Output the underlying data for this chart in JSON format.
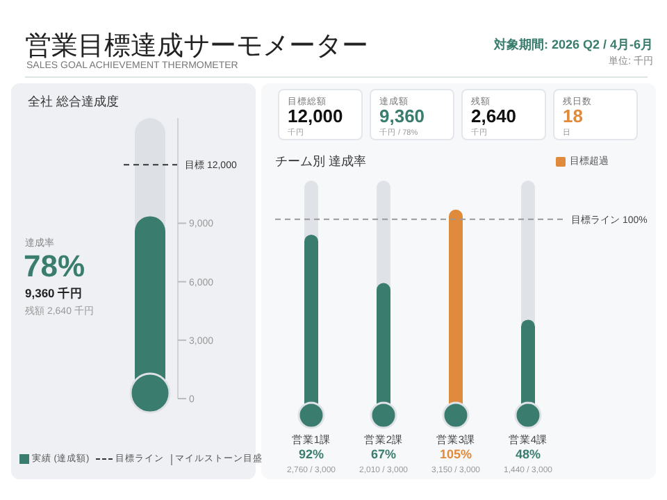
{
  "chart_data": [
    {
      "type": "other",
      "title": "営業目標達成サーモメーター",
      "subtitle": "SALES GOAL ACHIEVEMENT THERMOMETER",
      "annotations": [
        "対象期間: 2026 Q2 / 4月-6月",
        "単位: 千円"
      ]
    },
    {
      "type": "bar",
      "title": "全社 総合達成度",
      "categories": [
        null
      ],
      "series": [
        {
          "name": "実績 (達成額)",
          "color": "#3a7d6e",
          "values": [
            9360
          ]
        }
      ],
      "ylim": [
        0,
        14400
      ],
      "yticks": [
        {
          "value": 0,
          "label": "0"
        },
        {
          "value": 3000,
          "label": "3,000"
        },
        {
          "value": 6000,
          "label": "6,000"
        },
        {
          "value": 9000,
          "label": "9,000"
        }
      ],
      "ref_lines": [
        {
          "axis": "y",
          "value": 12000,
          "label": "目標 12,000",
          "line_style": "dashed",
          "color": "#333333"
        }
      ],
      "legend": "bottom left",
      "annotations": [
        "達成率",
        "78%",
        "9,360 千円",
        "残額 2,640 千円",
        "目標ライン",
        "マイルストーン目盛"
      ]
    },
    {
      "type": "other",
      "annotations": [
        "目標総額",
        "12,000",
        "千円",
        "達成額",
        "9,360",
        "千円 / 78%",
        "残額",
        "2,640",
        "千円",
        "残日数",
        "18",
        "日"
      ]
    },
    {
      "type": "bar",
      "title": "チーム別 達成率",
      "categories": [
        "営業1課",
        "営業2課",
        "営業3課",
        "営業4課"
      ],
      "series": [
        {
          "color": "#3a7d6e",
          "values": [
            92,
            67,
            null,
            48
          ],
          "value_labels": [
            "92%",
            "67%",
            null,
            "48%"
          ]
        },
        {
          "name": "目標超過",
          "color": "#e08a3c",
          "values": [
            null,
            null,
            105,
            null
          ],
          "value_labels": [
            null,
            null,
            "105%",
            null
          ]
        }
      ],
      "tick_labels": "x",
      "ref_lines": [
        {
          "axis": "y",
          "value": 100,
          "label": "目標ライン 100%",
          "line_style": "dashed",
          "color": "#999999"
        }
      ],
      "legend": "top right",
      "annotations": [
        "2,760 / 3,000",
        "2,010 / 3,000",
        "3,150 / 3,000",
        "1,440 / 3,000"
      ]
    }
  ]
}
